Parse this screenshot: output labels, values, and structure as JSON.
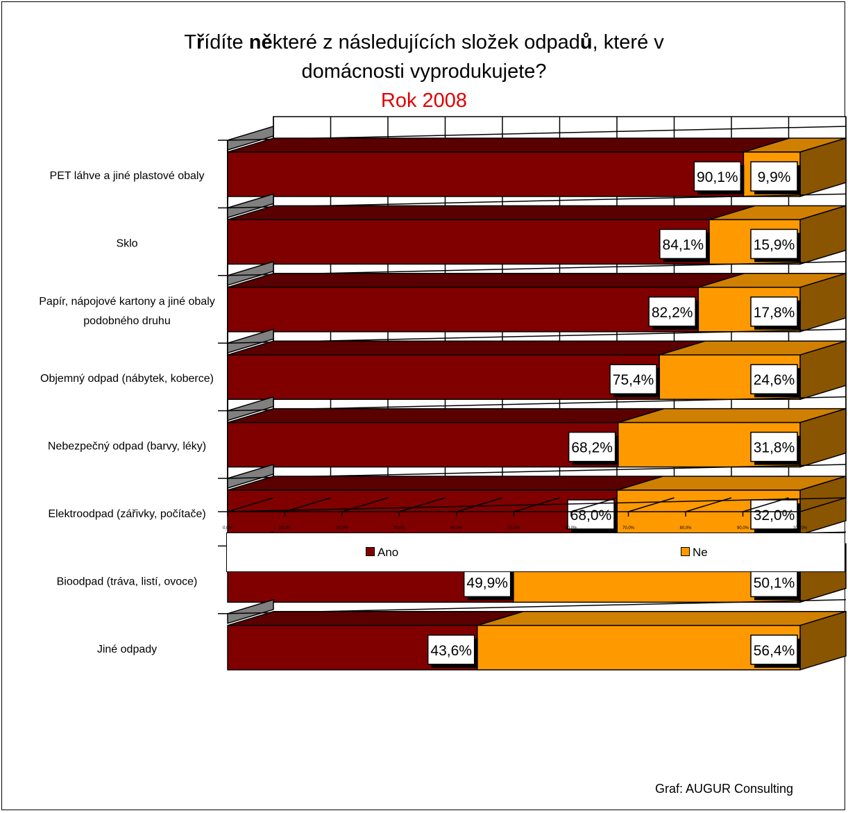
{
  "title": {
    "line1_parts": [
      "T",
      "ř",
      "ídíte ",
      "ně",
      "které z následujících složek odpad",
      "ů",
      ", které v"
    ],
    "line1_bold": [
      false,
      true,
      false,
      true,
      false,
      true,
      false
    ],
    "line2": "domácnosti vyprodukujete?",
    "subtitle": "Rok 2008"
  },
  "colors": {
    "ano": "#800000",
    "ano_top": "#5a0000",
    "ne": "#ff9900",
    "ne_top": "#d08000",
    "ne_side": "#8a5500",
    "floor": "#808080"
  },
  "chart_data": {
    "type": "bar",
    "orientation": "horizontal",
    "stacked": true,
    "categories": [
      "PET láhve a jiné plastové obaly",
      "Sklo",
      "Papír, nápojové kartony a jiné obaly podobného druhu",
      "Objemný odpad (nábytek, koberce)",
      "Nebezpečný odpad (barvy, léky)",
      "Elektroodpad (zářivky, počítače)",
      "Bioodpad (tráva, listí, ovoce)",
      "Jiné odpady"
    ],
    "category_lines": [
      [
        "PET láhve a jiné plastové obaly"
      ],
      [
        "Sklo"
      ],
      [
        "Papír, nápojové kartony a jiné obaly",
        "podobného druhu"
      ],
      [
        "Objemný odpad (nábytek, koberce)"
      ],
      [
        "Nebezpečný odpad (barvy, léky)"
      ],
      [
        "Elektroodpad (zářivky, počítače)"
      ],
      [
        "Bioodpad (tráva, listí, ovoce)"
      ],
      [
        "Jiné odpady"
      ]
    ],
    "series": [
      {
        "name": "Ano",
        "values": [
          90.1,
          84.1,
          82.2,
          75.4,
          68.2,
          68.0,
          49.9,
          43.6
        ],
        "labels": [
          "90,1%",
          "84,1%",
          "82,2%",
          "75,4%",
          "68,2%",
          "68,0%",
          "49,9%",
          "43,6%"
        ]
      },
      {
        "name": "Ne",
        "values": [
          9.9,
          15.9,
          17.8,
          24.6,
          31.8,
          32.0,
          50.1,
          56.4
        ],
        "labels": [
          "9,9%",
          "15,9%",
          "17,8%",
          "24,6%",
          "31,8%",
          "32,0%",
          "50,1%",
          "56,4%"
        ]
      }
    ],
    "xlim": [
      0,
      100
    ],
    "x_ticks": [
      0,
      10,
      20,
      30,
      40,
      50,
      60,
      70,
      80,
      90,
      100
    ],
    "x_tick_labels": [
      "0,0%",
      "10,0%",
      "20,0%",
      "30,0%",
      "40,0%",
      "50,0%",
      "60,0%",
      "70,0%",
      "80,0%",
      "90,0%",
      "100,0%"
    ],
    "grid": true,
    "legend_position": "bottom"
  },
  "legend": {
    "ano": "Ano",
    "ne": "Ne"
  },
  "credit": "Graf: AUGUR Consulting"
}
